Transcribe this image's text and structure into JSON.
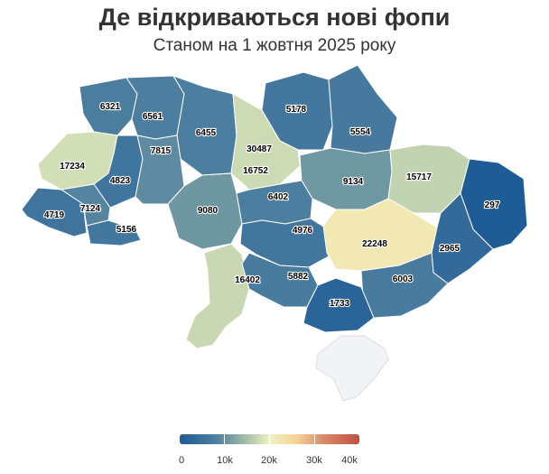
{
  "title": "Де відкриваються нові фопи",
  "subtitle": "Станом на 1 жовтня 2025 року",
  "colors": {
    "scale": [
      "#1d5a96",
      "#4e7f9f",
      "#a9c2a8",
      "#eef2c0",
      "#f6d398",
      "#d98a68",
      "#c24e42"
    ],
    "no_data": "#f2f3f5",
    "border": "#ffffff"
  },
  "legend": {
    "labels": [
      "0",
      "10k",
      "20k",
      "30k",
      "40k"
    ],
    "min": 0,
    "max": 40000
  },
  "regions": [
    {
      "value": 6321
    },
    {
      "value": 6561
    },
    {
      "value": 6455
    },
    {
      "value": 30487
    },
    {
      "value": 5178
    },
    {
      "value": 5554
    },
    {
      "value": 17234
    },
    {
      "value": 4823
    },
    {
      "value": 7815
    },
    {
      "value": 16752
    },
    {
      "value": 9134
    },
    {
      "value": 15717
    },
    {
      "value": 297
    },
    {
      "value": 4719
    },
    {
      "value": 7124
    },
    {
      "value": 9080
    },
    {
      "value": 6402
    },
    {
      "value": 5156
    },
    {
      "value": 4976
    },
    {
      "value": 22248
    },
    {
      "value": 2965
    },
    {
      "value": 16402
    },
    {
      "value": 5882
    },
    {
      "value": 6003
    },
    {
      "value": 1733
    }
  ]
}
